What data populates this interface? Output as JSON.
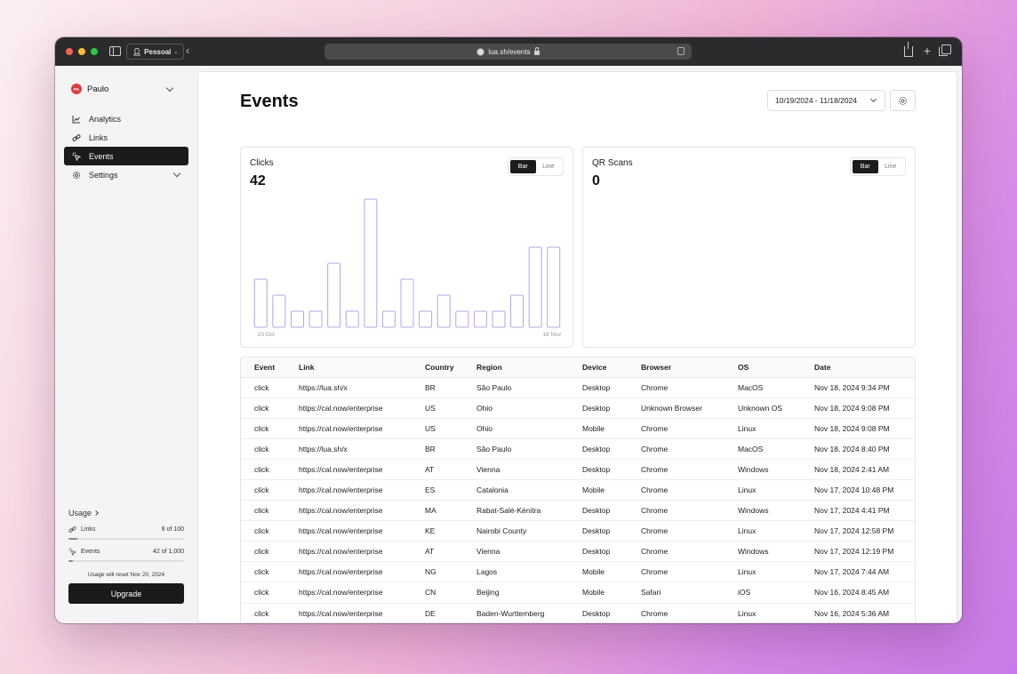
{
  "browser": {
    "profile": "Pessoal",
    "url": "lua.sh/events"
  },
  "sidebar": {
    "user": {
      "name": "Paulo",
      "initials": "PA"
    },
    "items": [
      {
        "label": "Analytics",
        "icon": "chart-line-icon"
      },
      {
        "label": "Links",
        "icon": "link-icon"
      },
      {
        "label": "Events",
        "icon": "cursor-click-icon",
        "active": true
      },
      {
        "label": "Settings",
        "icon": "gear-icon"
      }
    ],
    "usage": {
      "title": "Usage",
      "links": {
        "label": "Links",
        "count": "8 of 100",
        "fraction": 0.08
      },
      "events": {
        "label": "Events",
        "count": "42 of 1,000",
        "fraction": 0.042
      },
      "reset_note": "Usage will reset Nov 20, 2024",
      "upgrade_label": "Upgrade"
    }
  },
  "main": {
    "title": "Events",
    "date_range": "10/19/2024 - 11/18/2024",
    "toggle": {
      "bar": "Bar",
      "line": "Line"
    },
    "clicks": {
      "label": "Clicks",
      "value": "42"
    },
    "qr": {
      "label": "QR Scans",
      "value": "0"
    }
  },
  "chart_data": {
    "type": "bar",
    "title": "Clicks",
    "values": [
      3,
      2,
      1,
      1,
      4,
      1,
      8,
      1,
      3,
      1,
      2,
      1,
      1,
      1,
      2,
      5,
      5
    ],
    "x_tick_labels": [
      "23 Oct",
      "18 Nov"
    ],
    "bar_color": "#b6a4ee"
  },
  "table": {
    "columns": [
      "Event",
      "Link",
      "Country",
      "Region",
      "Device",
      "Browser",
      "OS",
      "Date"
    ],
    "rows": [
      [
        "click",
        "https://lua.sh/x",
        "BR",
        "São Paulo",
        "Desktop",
        "Chrome",
        "MacOS",
        "Nov 18, 2024 9:34 PM"
      ],
      [
        "click",
        "https://cal.now/enterprise",
        "US",
        "Ohio",
        "Desktop",
        "Unknown Browser",
        "Unknown OS",
        "Nov 18, 2024 9:08 PM"
      ],
      [
        "click",
        "https://cal.now/enterprise",
        "US",
        "Ohio",
        "Mobile",
        "Chrome",
        "Linux",
        "Nov 18, 2024 9:08 PM"
      ],
      [
        "click",
        "https://lua.sh/x",
        "BR",
        "São Paulo",
        "Desktop",
        "Chrome",
        "MacOS",
        "Nov 18, 2024 8:40 PM"
      ],
      [
        "click",
        "https://cal.now/enterprise",
        "AT",
        "Vienna",
        "Desktop",
        "Chrome",
        "Windows",
        "Nov 18, 2024 2:41 AM"
      ],
      [
        "click",
        "https://cal.now/enterprise",
        "ES",
        "Catalonia",
        "Mobile",
        "Chrome",
        "Linux",
        "Nov 17, 2024 10:48 PM"
      ],
      [
        "click",
        "https://cal.now/enterprise",
        "MA",
        "Rabat-Salé-Kénitra",
        "Desktop",
        "Chrome",
        "Windows",
        "Nov 17, 2024 4:41 PM"
      ],
      [
        "click",
        "https://cal.now/enterprise",
        "KE",
        "Nairobi County",
        "Desktop",
        "Chrome",
        "Linux",
        "Nov 17, 2024 12:58 PM"
      ],
      [
        "click",
        "https://cal.now/enterprise",
        "AT",
        "Vienna",
        "Desktop",
        "Chrome",
        "Windows",
        "Nov 17, 2024 12:19 PM"
      ],
      [
        "click",
        "https://cal.now/enterprise",
        "NG",
        "Lagos",
        "Mobile",
        "Chrome",
        "Linux",
        "Nov 17, 2024 7:44 AM"
      ],
      [
        "click",
        "https://cal.now/enterprise",
        "CN",
        "Beijing",
        "Mobile",
        "Safari",
        "iOS",
        "Nov 16, 2024 8:45 AM"
      ],
      [
        "click",
        "https://cal.now/enterprise",
        "DE",
        "Baden-Wurttemberg",
        "Desktop",
        "Chrome",
        "Linux",
        "Nov 16, 2024 5:36 AM"
      ]
    ]
  }
}
